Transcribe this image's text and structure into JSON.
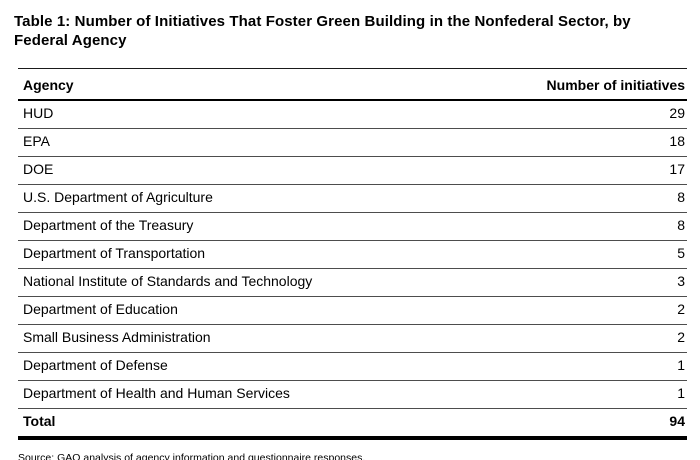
{
  "title": "Table 1: Number of Initiatives That Foster Green Building in the Nonfederal Sector, by Federal Agency",
  "table": {
    "columns": {
      "agency": "Agency",
      "count": "Number of initiatives"
    },
    "rows": [
      {
        "agency": "HUD",
        "count": 29
      },
      {
        "agency": "EPA",
        "count": 18
      },
      {
        "agency": "DOE",
        "count": 17
      },
      {
        "agency": "U.S. Department of Agriculture",
        "count": 8
      },
      {
        "agency": "Department of the Treasury",
        "count": 8
      },
      {
        "agency": "Department of Transportation",
        "count": 5
      },
      {
        "agency": "National Institute of Standards and Technology",
        "count": 3
      },
      {
        "agency": "Department of Education",
        "count": 2
      },
      {
        "agency": "Small Business Administration",
        "count": 2
      },
      {
        "agency": "Department of Defense",
        "count": 1
      },
      {
        "agency": "Department of Health and Human Services",
        "count": 1
      }
    ],
    "total": {
      "label": "Total",
      "count": 94
    }
  },
  "source_note": "Source: GAO analysis of agency information and questionnaire responses."
}
